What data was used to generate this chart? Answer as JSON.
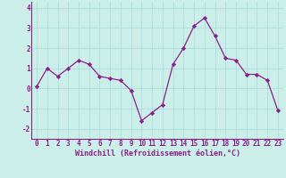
{
  "x": [
    0,
    1,
    2,
    3,
    4,
    5,
    6,
    7,
    8,
    9,
    10,
    11,
    12,
    13,
    14,
    15,
    16,
    17,
    18,
    19,
    20,
    21,
    22,
    23
  ],
  "y": [
    0.1,
    1.0,
    0.6,
    1.0,
    1.4,
    1.2,
    0.6,
    0.5,
    0.4,
    -0.1,
    -1.6,
    -1.2,
    -0.8,
    1.2,
    2.0,
    3.1,
    3.5,
    2.6,
    1.5,
    1.4,
    0.7,
    0.7,
    0.4,
    -1.1
  ],
  "line_color": "#882288",
  "marker": "D",
  "marker_size": 2.2,
  "bg_color": "#cceee8",
  "grid_color": "#aadddd",
  "xlabel": "Windchill (Refroidissement éolien,°C)",
  "xlabel_fontsize": 6.0,
  "tick_fontsize": 5.5,
  "xlim": [
    -0.5,
    23.5
  ],
  "ylim": [
    -2.5,
    4.3
  ],
  "yticks": [
    -2,
    -1,
    0,
    1,
    2,
    3,
    4
  ],
  "xticks": [
    0,
    1,
    2,
    3,
    4,
    5,
    6,
    7,
    8,
    9,
    10,
    11,
    12,
    13,
    14,
    15,
    16,
    17,
    18,
    19,
    20,
    21,
    22,
    23
  ]
}
